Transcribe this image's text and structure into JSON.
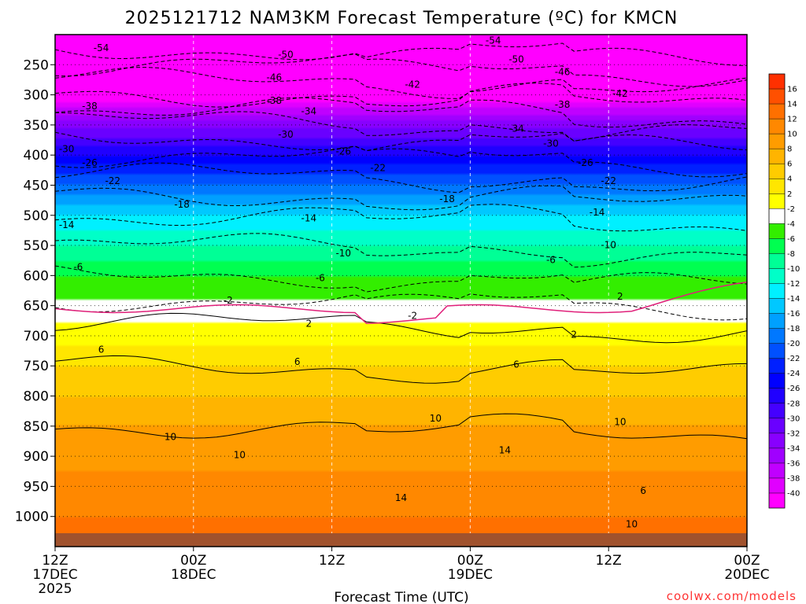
{
  "chart_data": {
    "type": "heatmap",
    "title": "2025121712 NAM3KM Forecast Temperature (ºC) for KMCN",
    "xlabel": "Forecast Time (UTC)",
    "ylabel": "",
    "credit": "coolwx.com/models",
    "x_range_hours": [
      0,
      60
    ],
    "y_range_hpa": [
      200,
      1050
    ],
    "x_ticks": [
      {
        "h": 0,
        "l1": "12Z",
        "l2": "17DEC",
        "l3": "2025"
      },
      {
        "h": 12,
        "l1": "00Z",
        "l2": "18DEC",
        "l3": ""
      },
      {
        "h": 24,
        "l1": "12Z",
        "l2": "",
        "l3": ""
      },
      {
        "h": 36,
        "l1": "00Z",
        "l2": "19DEC",
        "l3": ""
      },
      {
        "h": 48,
        "l1": "12Z",
        "l2": "",
        "l3": ""
      },
      {
        "h": 60,
        "l1": "00Z",
        "l2": "20DEC",
        "l3": ""
      }
    ],
    "y_ticks": [
      {
        "p": 250,
        "label": "250"
      },
      {
        "p": 300,
        "label": "300"
      },
      {
        "p": 350,
        "label": "350"
      },
      {
        "p": 400,
        "label": "400"
      },
      {
        "p": 450,
        "label": "450"
      },
      {
        "p": 500,
        "label": "500"
      },
      {
        "p": 550,
        "label": "550"
      },
      {
        "p": 600,
        "label": "600"
      },
      {
        "p": 650,
        "label": "650"
      },
      {
        "p": 700,
        "label": "700"
      },
      {
        "p": 750,
        "label": "750"
      },
      {
        "p": 800,
        "label": "800"
      },
      {
        "p": 850,
        "label": "850"
      },
      {
        "p": 900,
        "label": "900"
      },
      {
        "p": 950,
        "label": "950"
      },
      {
        "p": 1000,
        "label": "1000"
      }
    ],
    "colorbar": {
      "colors": [
        "#ff00ff",
        "#e000ff",
        "#c000ff",
        "#a000ff",
        "#8800ff",
        "#6a00ff",
        "#4400ff",
        "#2000ff",
        "#0000ff",
        "#0020ff",
        "#0050ff",
        "#0078ff",
        "#00a0ff",
        "#00c8ff",
        "#00f0ff",
        "#00ffc8",
        "#00ff96",
        "#00ff50",
        "#33ee00",
        "#ffffff",
        "#ffff00",
        "#ffe600",
        "#ffcc00",
        "#ffb400",
        "#ff9c00",
        "#ff8800",
        "#ff7000",
        "#ff5000",
        "#ff3000"
      ],
      "labels": [
        "-40",
        "-38",
        "-36",
        "-34",
        "-32",
        "-30",
        "-28",
        "-26",
        "-24",
        "-22",
        "-20",
        "-18",
        "-16",
        "-14",
        "-12",
        "-10",
        "-8",
        "-6",
        "-4",
        "-2",
        "2",
        "4",
        "6",
        "8",
        "10",
        "12",
        "14",
        "16"
      ]
    },
    "isotherm_profile": [
      {
        "p": 200,
        "t": -58
      },
      {
        "p": 250,
        "t": -50
      },
      {
        "p": 300,
        "t": -42
      },
      {
        "p": 350,
        "t": -33
      },
      {
        "p": 400,
        "t": -26
      },
      {
        "p": 450,
        "t": -20
      },
      {
        "p": 500,
        "t": -14
      },
      {
        "p": 550,
        "t": -10
      },
      {
        "p": 600,
        "t": -6
      },
      {
        "p": 640,
        "t": -2
      },
      {
        "p": 660,
        "t": 1
      },
      {
        "p": 700,
        "t": 3
      },
      {
        "p": 750,
        "t": 6
      },
      {
        "p": 800,
        "t": 8
      },
      {
        "p": 850,
        "t": 10
      },
      {
        "p": 900,
        "t": 11
      },
      {
        "p": 950,
        "t": 13
      },
      {
        "p": 1000,
        "t": 14
      },
      {
        "p": 1050,
        "t": 15
      }
    ],
    "contour_labels": [
      {
        "h": 4,
        "p": 222,
        "text": "-54"
      },
      {
        "h": 20,
        "p": 233,
        "text": "-50"
      },
      {
        "h": 19,
        "p": 271,
        "text": "-46"
      },
      {
        "h": 31,
        "p": 283,
        "text": "-42"
      },
      {
        "h": 38,
        "p": 210,
        "text": "-54"
      },
      {
        "h": 40,
        "p": 241,
        "text": "-50"
      },
      {
        "h": 44,
        "p": 262,
        "text": "-46"
      },
      {
        "h": 49,
        "p": 298,
        "text": "-42"
      },
      {
        "h": 3,
        "p": 319,
        "text": "-38"
      },
      {
        "h": 19,
        "p": 310,
        "text": "-38"
      },
      {
        "h": 44,
        "p": 316,
        "text": "-38"
      },
      {
        "h": 22,
        "p": 327,
        "text": "-34"
      },
      {
        "h": 40,
        "p": 356,
        "text": "-34"
      },
      {
        "h": 1,
        "p": 390,
        "text": "-30"
      },
      {
        "h": 20,
        "p": 366,
        "text": "-30"
      },
      {
        "h": 43,
        "p": 381,
        "text": "-30"
      },
      {
        "h": 3,
        "p": 413,
        "text": "-26"
      },
      {
        "h": 25,
        "p": 394,
        "text": "-26"
      },
      {
        "h": 46,
        "p": 413,
        "text": "-26"
      },
      {
        "h": 5,
        "p": 443,
        "text": "-22"
      },
      {
        "h": 28,
        "p": 421,
        "text": "-22"
      },
      {
        "h": 48,
        "p": 443,
        "text": "-22"
      },
      {
        "h": 11,
        "p": 482,
        "text": "-18"
      },
      {
        "h": 34,
        "p": 473,
        "text": "-18"
      },
      {
        "h": 1,
        "p": 516,
        "text": "-14"
      },
      {
        "h": 22,
        "p": 505,
        "text": "-14"
      },
      {
        "h": 47,
        "p": 495,
        "text": "-14"
      },
      {
        "h": 25,
        "p": 563,
        "text": "-10"
      },
      {
        "h": 48,
        "p": 549,
        "text": "-10"
      },
      {
        "h": 2,
        "p": 586,
        "text": "-6"
      },
      {
        "h": 23,
        "p": 604,
        "text": "-6"
      },
      {
        "h": 43,
        "p": 574,
        "text": "-6"
      },
      {
        "h": 15,
        "p": 641,
        "text": "-2"
      },
      {
        "h": 31,
        "p": 667,
        "text": "-2"
      },
      {
        "h": 49,
        "p": 635,
        "text": "2"
      },
      {
        "h": 22,
        "p": 680,
        "text": "2"
      },
      {
        "h": 45,
        "p": 698,
        "text": "2"
      },
      {
        "h": 4,
        "p": 723,
        "text": "6"
      },
      {
        "h": 21,
        "p": 743,
        "text": "6"
      },
      {
        "h": 40,
        "p": 748,
        "text": "6"
      },
      {
        "h": 10,
        "p": 868,
        "text": "10"
      },
      {
        "h": 16,
        "p": 898,
        "text": "10"
      },
      {
        "h": 33,
        "p": 837,
        "text": "10"
      },
      {
        "h": 49,
        "p": 843,
        "text": "10"
      },
      {
        "h": 39,
        "p": 890,
        "text": "14"
      },
      {
        "h": 30,
        "p": 969,
        "text": "14"
      },
      {
        "h": 51,
        "p": 957,
        "text": "6"
      },
      {
        "h": 50,
        "p": 1013,
        "text": "10"
      }
    ]
  }
}
